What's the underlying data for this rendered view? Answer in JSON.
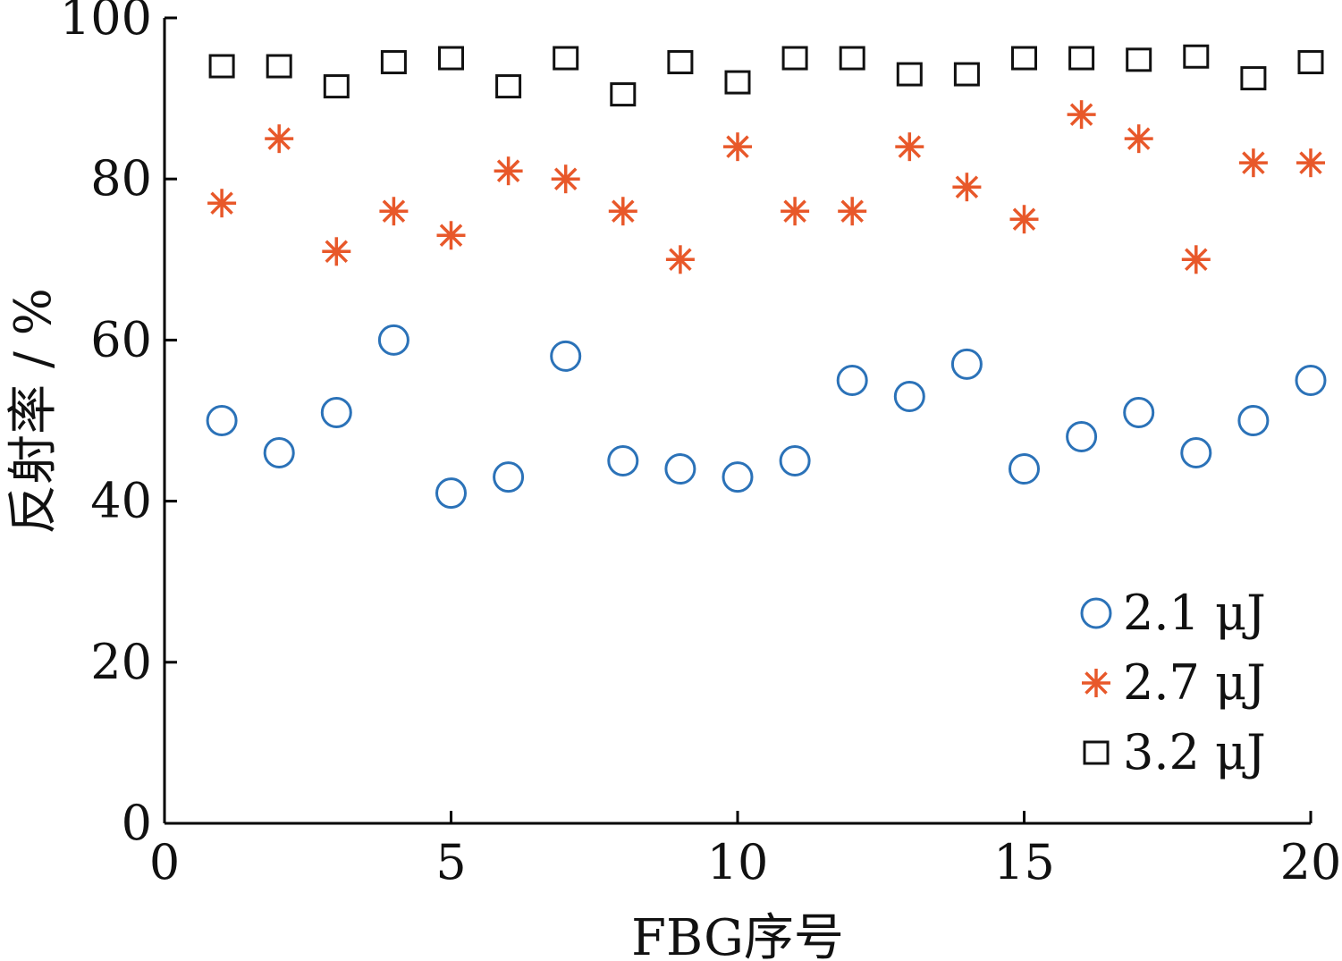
{
  "chart_data": {
    "type": "scatter",
    "title": "",
    "xlabel": "FBG序号",
    "ylabel": "反射率 / %",
    "xlim": [
      0,
      20
    ],
    "ylim": [
      0,
      100
    ],
    "xticks": [
      0,
      5,
      10,
      15,
      20
    ],
    "yticks": [
      0,
      20,
      40,
      60,
      80,
      100
    ],
    "grid": false,
    "legend_position": "bottom-right",
    "x": [
      1,
      2,
      3,
      4,
      5,
      6,
      7,
      8,
      9,
      10,
      11,
      12,
      13,
      14,
      15,
      16,
      17,
      18,
      19,
      20
    ],
    "series": [
      {
        "name": "2.1 μJ",
        "marker": "circle",
        "color": "#2b72b8",
        "values": [
          50,
          46,
          51,
          60,
          41,
          43,
          58,
          45,
          44,
          43,
          45,
          55,
          53,
          57,
          44,
          48,
          51,
          46,
          50,
          55
        ]
      },
      {
        "name": "2.7 μJ",
        "marker": "asterisk",
        "color": "#e8582a",
        "values": [
          77,
          85,
          71,
          76,
          73,
          81,
          80,
          76,
          70,
          84,
          76,
          76,
          84,
          79,
          75,
          88,
          85,
          70,
          82,
          82
        ]
      },
      {
        "name": "3.2 μJ",
        "marker": "square",
        "color": "#111111",
        "values": [
          94,
          94,
          91.5,
          94.5,
          95,
          91.5,
          95,
          90.5,
          94.5,
          92,
          95,
          95,
          93,
          93,
          95,
          95,
          94.8,
          95.2,
          92.5,
          94.5
        ]
      }
    ]
  }
}
